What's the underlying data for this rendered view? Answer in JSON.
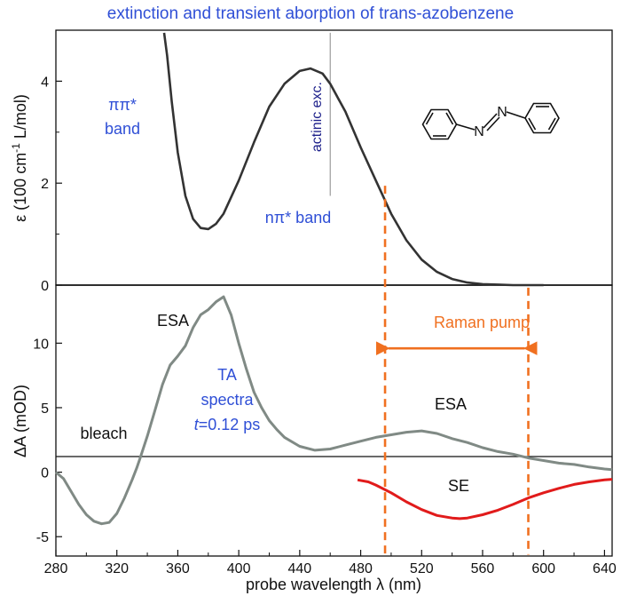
{
  "colors": {
    "accent_blue": "#2f4fd6",
    "extinction_curve": "#333333",
    "ta_curve": "#808a85",
    "se_curve": "#e11b1b",
    "orange": "#f07020",
    "actinic_line": "#888888"
  },
  "chart_data": [
    {
      "type": "line",
      "panel": "top",
      "title": "extinction and transient aborption of trans-azobenzene",
      "ylabel": "ε (100 cm⁻¹ L/mol)",
      "ylabel_main": "ε  (100 cm",
      "ylabel_sup": "-1",
      "ylabel_rest": " L/mol)",
      "xlim": [
        280,
        645
      ],
      "ylim": [
        0,
        5
      ],
      "yticks": [
        0,
        2,
        4
      ],
      "grid": false,
      "series": [
        {
          "x": [
            351,
            353,
            356,
            360,
            365,
            370,
            375,
            380,
            385,
            390,
            400,
            410,
            420,
            430,
            440,
            447,
            455,
            460,
            470,
            480,
            490,
            500,
            510,
            520,
            530,
            540,
            550,
            560,
            570,
            580,
            590,
            600
          ],
          "y": [
            4.95,
            4.5,
            3.6,
            2.6,
            1.75,
            1.3,
            1.12,
            1.1,
            1.2,
            1.4,
            2.05,
            2.8,
            3.5,
            3.95,
            4.2,
            4.25,
            4.15,
            3.95,
            3.4,
            2.7,
            2.05,
            1.4,
            0.88,
            0.5,
            0.26,
            0.12,
            0.05,
            0.02,
            0.01,
            0.0,
            0.0,
            0.0
          ]
        }
      ],
      "annotations": {
        "pipi_band": [
          "ππ*",
          "band"
        ],
        "npi_band": "nπ* band",
        "actinic": "actinic exc.",
        "actinic_x": 460,
        "actinic_y_range": [
          1.75,
          4.95
        ]
      }
    },
    {
      "type": "line",
      "panel": "bottom",
      "xlabel": "probe wavelength λ  (nm)",
      "ylabel": "ΔA  (mOD)",
      "xlim": [
        280,
        645
      ],
      "ylim": [
        -6.5,
        14.5
      ],
      "xticks": [
        280,
        320,
        360,
        400,
        440,
        480,
        520,
        560,
        600,
        640
      ],
      "yticks": [
        -5,
        0,
        5,
        10
      ],
      "grid": false,
      "series": [
        {
          "x": [
            280,
            285,
            290,
            295,
            300,
            305,
            310,
            315,
            320,
            325,
            330,
            333,
            335,
            340,
            345,
            350,
            355,
            360,
            365,
            370,
            375,
            380,
            385,
            390,
            395,
            400,
            405,
            410,
            415,
            420,
            425,
            430,
            440,
            450,
            460,
            470,
            480,
            490,
            500,
            510,
            520,
            530,
            540,
            550,
            560,
            570,
            580,
            590,
            600,
            610,
            620,
            630,
            640,
            645
          ],
          "y": [
            0,
            -0.5,
            -1.5,
            -2.5,
            -3.3,
            -3.8,
            -4.0,
            -3.9,
            -3.2,
            -2.0,
            -0.6,
            0.3,
            1.0,
            2.8,
            4.8,
            6.8,
            8.3,
            9.0,
            9.8,
            11.2,
            12.2,
            12.6,
            13.2,
            13.6,
            12.2,
            10.0,
            8.0,
            6.2,
            5.0,
            4.0,
            3.3,
            2.7,
            2.0,
            1.7,
            1.8,
            2.1,
            2.4,
            2.7,
            2.9,
            3.1,
            3.2,
            3.0,
            2.6,
            2.3,
            1.9,
            1.6,
            1.4,
            1.1,
            0.9,
            0.7,
            0.6,
            0.4,
            0.25,
            0.2
          ]
        },
        {
          "x": [
            478,
            485,
            490,
            500,
            510,
            520,
            530,
            540,
            545,
            550,
            560,
            570,
            580,
            590,
            600,
            610,
            620,
            630,
            640,
            645
          ],
          "y": [
            -0.6,
            -0.75,
            -1.0,
            -1.6,
            -2.3,
            -2.9,
            -3.35,
            -3.55,
            -3.6,
            -3.55,
            -3.3,
            -2.95,
            -2.5,
            -2.0,
            -1.6,
            -1.25,
            -0.95,
            -0.75,
            -0.6,
            -0.55
          ]
        }
      ],
      "annotations": {
        "esa_peak": "ESA",
        "esa_tail": "ESA",
        "bleach": "bleach",
        "se": "SE",
        "ta_lines": [
          "TA",
          "spectra"
        ],
        "ta_time_t": "t",
        "ta_time_rest": "=0.12 ps",
        "raman_pump": "Raman pump",
        "raman_lines_x": [
          496,
          590
        ]
      }
    }
  ]
}
